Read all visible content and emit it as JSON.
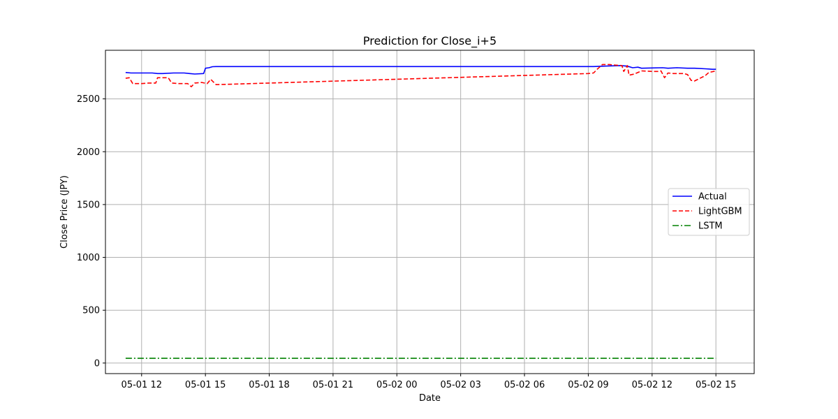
{
  "chart_data": {
    "type": "line",
    "title": "Prediction for Close_i+5",
    "xlabel": "Date",
    "ylabel": "Close Price (JPY)",
    "x_ticks": [
      "05-01 12",
      "05-01 15",
      "05-01 18",
      "05-01 21",
      "05-02 00",
      "05-02 03",
      "05-02 06",
      "05-02 09",
      "05-02 12",
      "05-02 15"
    ],
    "y_ticks": [
      0,
      500,
      1000,
      1500,
      2000,
      2500
    ],
    "ylim": [
      -100,
      2960
    ],
    "grid": true,
    "legend_position": "center-right",
    "series": [
      {
        "name": "Actual",
        "color": "#0000ff",
        "style": "solid",
        "x": [
          "05-01 11:15",
          "05-01 11:30",
          "05-01 12:00",
          "05-01 12:30",
          "05-01 12:45",
          "05-01 13:00",
          "05-01 13:30",
          "05-01 14:00",
          "05-01 14:15",
          "05-01 14:30",
          "05-01 14:55",
          "05-01 15:00",
          "05-01 15:10",
          "05-01 15:20",
          "05-01 15:30",
          "05-02 09:15",
          "05-02 09:45",
          "05-02 10:00",
          "05-02 10:30",
          "05-02 10:50",
          "05-02 11:05",
          "05-02 11:20",
          "05-02 11:30",
          "05-02 12:00",
          "05-02 12:30",
          "05-02 12:45",
          "05-02 13:10",
          "05-02 13:40",
          "05-02 14:00",
          "05-02 14:30",
          "05-02 14:50",
          "05-02 15:00"
        ],
        "y": [
          2750,
          2745,
          2745,
          2745,
          2740,
          2740,
          2745,
          2745,
          2740,
          2735,
          2740,
          2790,
          2795,
          2805,
          2806,
          2806,
          2810,
          2812,
          2815,
          2810,
          2795,
          2800,
          2790,
          2793,
          2795,
          2790,
          2795,
          2790,
          2790,
          2785,
          2780,
          2780
        ]
      },
      {
        "name": "LightGBM",
        "color": "#ff0000",
        "style": "dashed",
        "x": [
          "05-01 11:15",
          "05-01 11:25",
          "05-01 11:35",
          "05-01 12:00",
          "05-01 12:20",
          "05-01 12:40",
          "05-01 12:45",
          "05-01 13:15",
          "05-01 13:25",
          "05-01 13:45",
          "05-01 14:10",
          "05-01 14:20",
          "05-01 14:30",
          "05-01 14:50",
          "05-01 15:05",
          "05-01 15:15",
          "05-01 15:30",
          "05-02 09:00",
          "05-02 09:15",
          "05-02 09:25",
          "05-02 09:40",
          "05-02 10:00",
          "05-02 10:15",
          "05-02 10:35",
          "05-02 10:40",
          "05-02 10:50",
          "05-02 10:55",
          "05-02 11:10",
          "05-02 11:30",
          "05-02 12:00",
          "05-02 12:20",
          "05-02 12:25",
          "05-02 12:35",
          "05-02 12:45",
          "05-02 13:00",
          "05-02 13:30",
          "05-02 13:40",
          "05-02 13:50",
          "05-02 14:00",
          "05-02 14:30",
          "05-02 14:40",
          "05-02 15:00"
        ],
        "y": [
          2695,
          2700,
          2645,
          2645,
          2650,
          2650,
          2700,
          2700,
          2650,
          2645,
          2645,
          2615,
          2650,
          2655,
          2645,
          2685,
          2635,
          2740,
          2745,
          2780,
          2825,
          2825,
          2820,
          2815,
          2760,
          2815,
          2725,
          2735,
          2765,
          2760,
          2760,
          2765,
          2700,
          2745,
          2740,
          2740,
          2730,
          2675,
          2670,
          2720,
          2750,
          2765
        ]
      },
      {
        "name": "LSTM",
        "color": "#008000",
        "style": "dashdot",
        "x": [
          "05-01 11:15",
          "05-02 15:00"
        ],
        "y": [
          45,
          45
        ]
      }
    ]
  }
}
